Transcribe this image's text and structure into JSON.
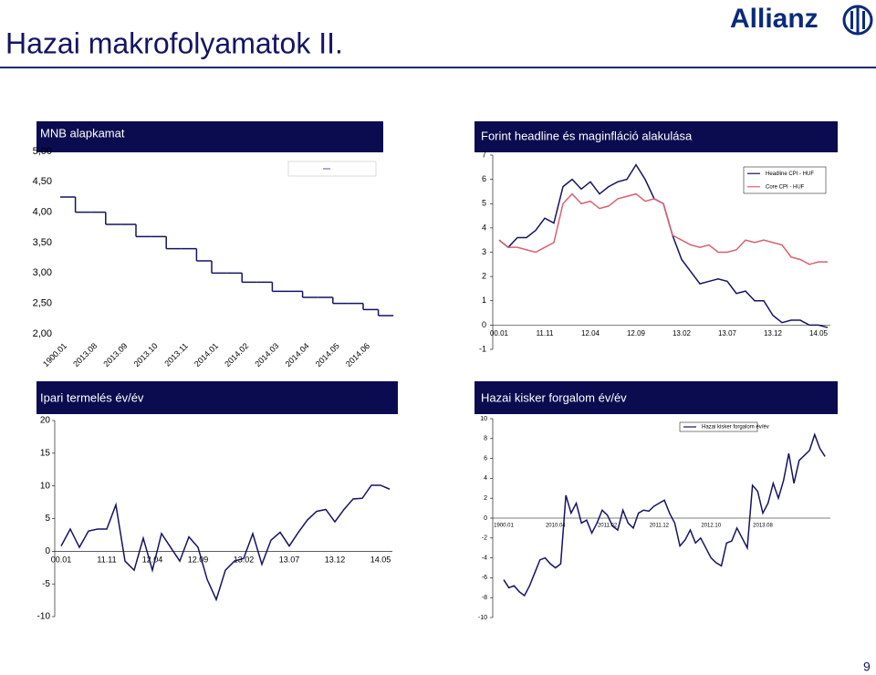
{
  "header": {
    "title": "Hazai makrofolyamatok II.",
    "logo": "Allianz"
  },
  "page_number": 9,
  "chart_data": [
    {
      "type": "line",
      "drawstyle": "steps",
      "title": "MNB alapkamat",
      "color": "#141464",
      "categories": [
        "1900.01",
        null,
        "2013.08",
        null,
        "2013.09",
        null,
        "2013.10",
        null,
        "2013.11",
        null,
        "2014.01",
        null,
        "2014.02",
        null,
        "2014.03",
        null,
        "2014.04",
        null,
        "2014.05",
        null,
        "2014.06",
        null
      ],
      "values": [
        4.25,
        4,
        4,
        3.8,
        3.8,
        3.6,
        3.6,
        3.4,
        3.4,
        3.2,
        3,
        3,
        2.85,
        2.85,
        2.7,
        2.7,
        2.6,
        2.6,
        2.5,
        2.5,
        2.4,
        2.3
      ],
      "ylim": [
        2,
        5
      ],
      "yticks": [
        {
          "value": 2,
          "label": "2,00"
        },
        {
          "value": 2.5,
          "label": "2,50"
        },
        {
          "value": 3,
          "label": "3,00"
        },
        {
          "value": 3.5,
          "label": "3,50"
        },
        {
          "value": 4,
          "label": "4,00"
        },
        {
          "value": 4.5,
          "label": "4,50"
        },
        {
          "value": 5,
          "label": "5,00"
        }
      ]
    },
    {
      "type": "line",
      "title": "Forint headline és maginfláció alakulása",
      "legend": "upper right",
      "categories": [
        "00.01",
        null,
        null,
        null,
        null,
        "11.11",
        null,
        null,
        null,
        null,
        "12.04",
        null,
        null,
        null,
        null,
        "12.09",
        null,
        null,
        null,
        null,
        "13.02",
        null,
        null,
        null,
        null,
        "13.07",
        null,
        null,
        null,
        null,
        "13.12",
        null,
        null,
        null,
        null,
        "14.05",
        null
      ],
      "series": [
        {
          "name": "Headline CPI - HUF",
          "color": "#141464",
          "values": [
            3.5,
            3.2,
            3.6,
            3.6,
            3.9,
            4.4,
            4.2,
            5.7,
            6.0,
            5.6,
            5.9,
            5.4,
            5.7,
            5.9,
            6.0,
            6.6,
            6.0,
            5.2,
            5.0,
            3.7,
            2.7,
            2.2,
            1.7,
            1.8,
            1.9,
            1.8,
            1.3,
            1.4,
            1.0,
            1.0,
            0.4,
            0.1,
            0.2,
            0.2,
            0.0,
            0.0,
            -0.1
          ]
        },
        {
          "name": "Core CPI - HUF",
          "color": "#d9606e",
          "values": [
            3.5,
            3.2,
            3.2,
            3.1,
            3.0,
            3.2,
            3.4,
            5.0,
            5.4,
            5.0,
            5.1,
            4.8,
            4.9,
            5.2,
            5.3,
            5.4,
            5.1,
            5.2,
            5.0,
            3.7,
            3.5,
            3.3,
            3.2,
            3.3,
            3.0,
            3.0,
            3.1,
            3.5,
            3.4,
            3.5,
            3.4,
            3.3,
            2.8,
            2.7,
            2.5,
            2.6,
            2.6
          ]
        }
      ],
      "ylim": [
        -1,
        7
      ],
      "yticks": [
        -1,
        0,
        1,
        2,
        3,
        4,
        5,
        6,
        7
      ]
    },
    {
      "type": "line",
      "title": "Ipari termelés év/év",
      "color": "#141464",
      "categories": [
        "00.01",
        null,
        null,
        null,
        null,
        "11.11",
        null,
        null,
        null,
        null,
        "12.04",
        null,
        null,
        null,
        null,
        "12.09",
        null,
        null,
        null,
        null,
        "13.02",
        null,
        null,
        null,
        null,
        "13.07",
        null,
        null,
        null,
        null,
        "13.12",
        null,
        null,
        null,
        null,
        "14.05",
        null
      ],
      "values": [
        0.8,
        3.4,
        0.6,
        3.1,
        3.4,
        3.4,
        7.1,
        -1.5,
        -2.9,
        2.0,
        -2.9,
        2.7,
        0.6,
        -1.5,
        2.2,
        0.6,
        -4.3,
        -7.4,
        -2.9,
        -1.5,
        -1.1,
        2.7,
        -2.0,
        1.7,
        2.9,
        0.8,
        2.9,
        4.8,
        6.1,
        6.4,
        4.5,
        6.4,
        8.0,
        8.1,
        10.1,
        10.1,
        9.5
      ],
      "ylim": [
        -10,
        20
      ],
      "yticks": [
        -10,
        -5,
        0,
        5,
        10,
        15,
        20
      ]
    },
    {
      "type": "line",
      "title": "Hazai kisker forgalom év/év",
      "legend": "upper right",
      "categories": [
        "1900.01",
        null,
        null,
        null,
        null,
        null,
        null,
        null,
        null,
        null,
        "2010.04",
        null,
        null,
        null,
        null,
        null,
        null,
        null,
        null,
        null,
        "2011.02",
        null,
        null,
        null,
        null,
        null,
        null,
        null,
        null,
        null,
        "2011.12",
        null,
        null,
        null,
        null,
        null,
        null,
        null,
        null,
        null,
        "2012.10",
        null,
        null,
        null,
        null,
        null,
        null,
        null,
        null,
        null,
        "2013.08",
        null,
        null,
        null,
        null,
        null,
        null,
        null,
        null,
        null,
        null,
        null,
        null
      ],
      "series": [
        {
          "name": "Hazai kisker forgalom év/év",
          "color": "#141464",
          "values": [
            -6.2,
            -7.0,
            -6.8,
            -7.4,
            -7.8,
            -6.8,
            -5.5,
            -4.2,
            -4.0,
            -4.6,
            -5.0,
            -4.6,
            2.3,
            0.5,
            1.5,
            -0.5,
            -0.2,
            -1.5,
            -0.5,
            0.8,
            0.3,
            -0.8,
            -1.2,
            0.8,
            -0.5,
            -1.0,
            0.5,
            0.8,
            0.7,
            1.2,
            1.5,
            1.8,
            0.5,
            -0.5,
            -2.8,
            -2.2,
            -1.2,
            -2.5,
            -2.0,
            -3.0,
            -4.0,
            -4.5,
            -4.8,
            -2.5,
            -2.3,
            -1.0,
            -2.0,
            -3.0,
            3.3,
            2.7,
            0.5,
            1.5,
            3.5,
            2.0,
            3.8,
            6.5,
            3.5,
            5.8,
            6.3,
            6.8,
            8.4,
            7.0,
            6.2
          ]
        }
      ],
      "ylim": [
        -10,
        10
      ],
      "yticks": [
        -10,
        -8,
        -6,
        -4,
        -2,
        0,
        2,
        4,
        6,
        8,
        10
      ]
    }
  ]
}
